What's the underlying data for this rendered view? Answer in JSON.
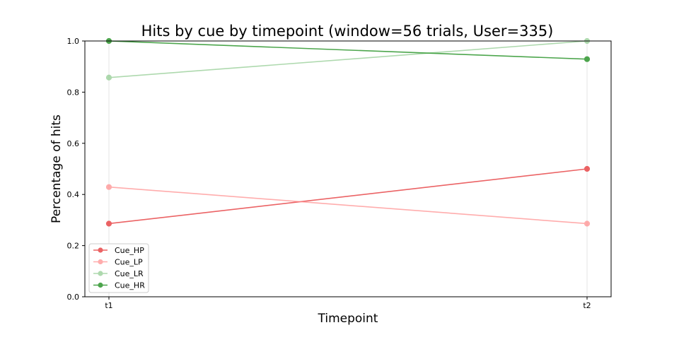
{
  "chart_data": {
    "type": "line",
    "title": "Hits by cue by timepoint (window=56 trials, User=335)",
    "xlabel": "Timepoint",
    "ylabel": "Percentage of hits",
    "categories": [
      "t1",
      "t2"
    ],
    "ylim": [
      0,
      1
    ],
    "yticks": [
      "0.0",
      "0.2",
      "0.4",
      "0.6",
      "0.8",
      "1.0"
    ],
    "grid": "vertical lines at x ticks",
    "legend_position": "lower-left",
    "series": [
      {
        "name": "Cue_HP",
        "values": [
          0.286,
          0.5
        ],
        "color": "#e8484a",
        "opacity": 0.85
      },
      {
        "name": "Cue_LP",
        "values": [
          0.429,
          0.286
        ],
        "color": "#ff8a8a",
        "opacity": 0.7
      },
      {
        "name": "Cue_LR",
        "values": [
          0.857,
          1.0
        ],
        "color": "#8cc98c",
        "opacity": 0.7
      },
      {
        "name": "Cue_HR",
        "values": [
          1.0,
          0.929
        ],
        "color": "#2e962e",
        "opacity": 0.85
      }
    ]
  }
}
